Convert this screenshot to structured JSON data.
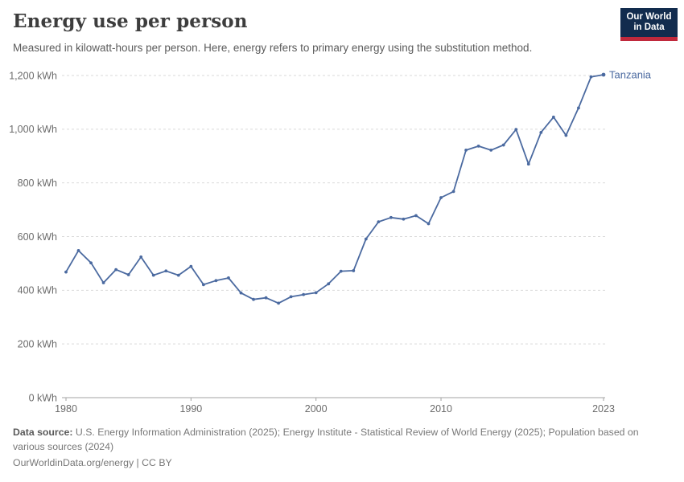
{
  "header": {
    "title": "Energy use per person",
    "subtitle": "Measured in kilowatt-hours per person. Here, energy refers to primary energy using the substitution method.",
    "logo": {
      "line1": "Our World",
      "line2": "in Data",
      "bg_color": "#122c4e",
      "accent_color": "#c0293c"
    }
  },
  "chart_data": {
    "type": "line",
    "title": "Energy use per person",
    "unit": "kWh",
    "xlabel": "",
    "ylabel": "",
    "xlim": [
      1980,
      2023
    ],
    "ylim": [
      0,
      1200
    ],
    "grid": "horizontal-dashed",
    "xticks": [
      1980,
      1990,
      2000,
      2010,
      2023
    ],
    "yticks": [
      0,
      200,
      400,
      600,
      800,
      1000,
      1200
    ],
    "ytick_labels": [
      "0 kWh",
      "200 kWh",
      "400 kWh",
      "600 kWh",
      "800 kWh",
      "1,000 kWh",
      "1,200 kWh"
    ],
    "x": [
      1980,
      1981,
      1982,
      1983,
      1984,
      1985,
      1986,
      1987,
      1988,
      1989,
      1990,
      1991,
      1992,
      1993,
      1994,
      1995,
      1996,
      1997,
      1998,
      1999,
      2000,
      2001,
      2002,
      2003,
      2004,
      2005,
      2006,
      2007,
      2008,
      2009,
      2010,
      2011,
      2012,
      2013,
      2014,
      2015,
      2016,
      2017,
      2018,
      2019,
      2020,
      2021,
      2022,
      2023
    ],
    "series": [
      {
        "name": "Tanzania",
        "color": "#4b6aa0",
        "values": [
          468,
          548,
          502,
          428,
          477,
          458,
          524,
          456,
          472,
          456,
          489,
          421,
          436,
          446,
          390,
          366,
          372,
          352,
          376,
          384,
          391,
          424,
          471,
          473,
          591,
          655,
          671,
          665,
          678,
          648,
          745,
          768,
          922,
          937,
          922,
          941,
          999,
          870,
          988,
          1045,
          977,
          1079,
          1195,
          1203
        ]
      }
    ],
    "end_label": "Tanzania",
    "axis_color": "#a3a3a3",
    "grid_color": "#d9d9d9",
    "tick_text_color": "#6b6b6b"
  },
  "footer": {
    "source_label": "Data source:",
    "source_text": " U.S. Energy Information Administration (2025); Energy Institute - Statistical Review of World Energy (2025); Population based on various sources (2024)",
    "link": "OurWorldinData.org/energy",
    "license_suffix": " | CC BY"
  }
}
